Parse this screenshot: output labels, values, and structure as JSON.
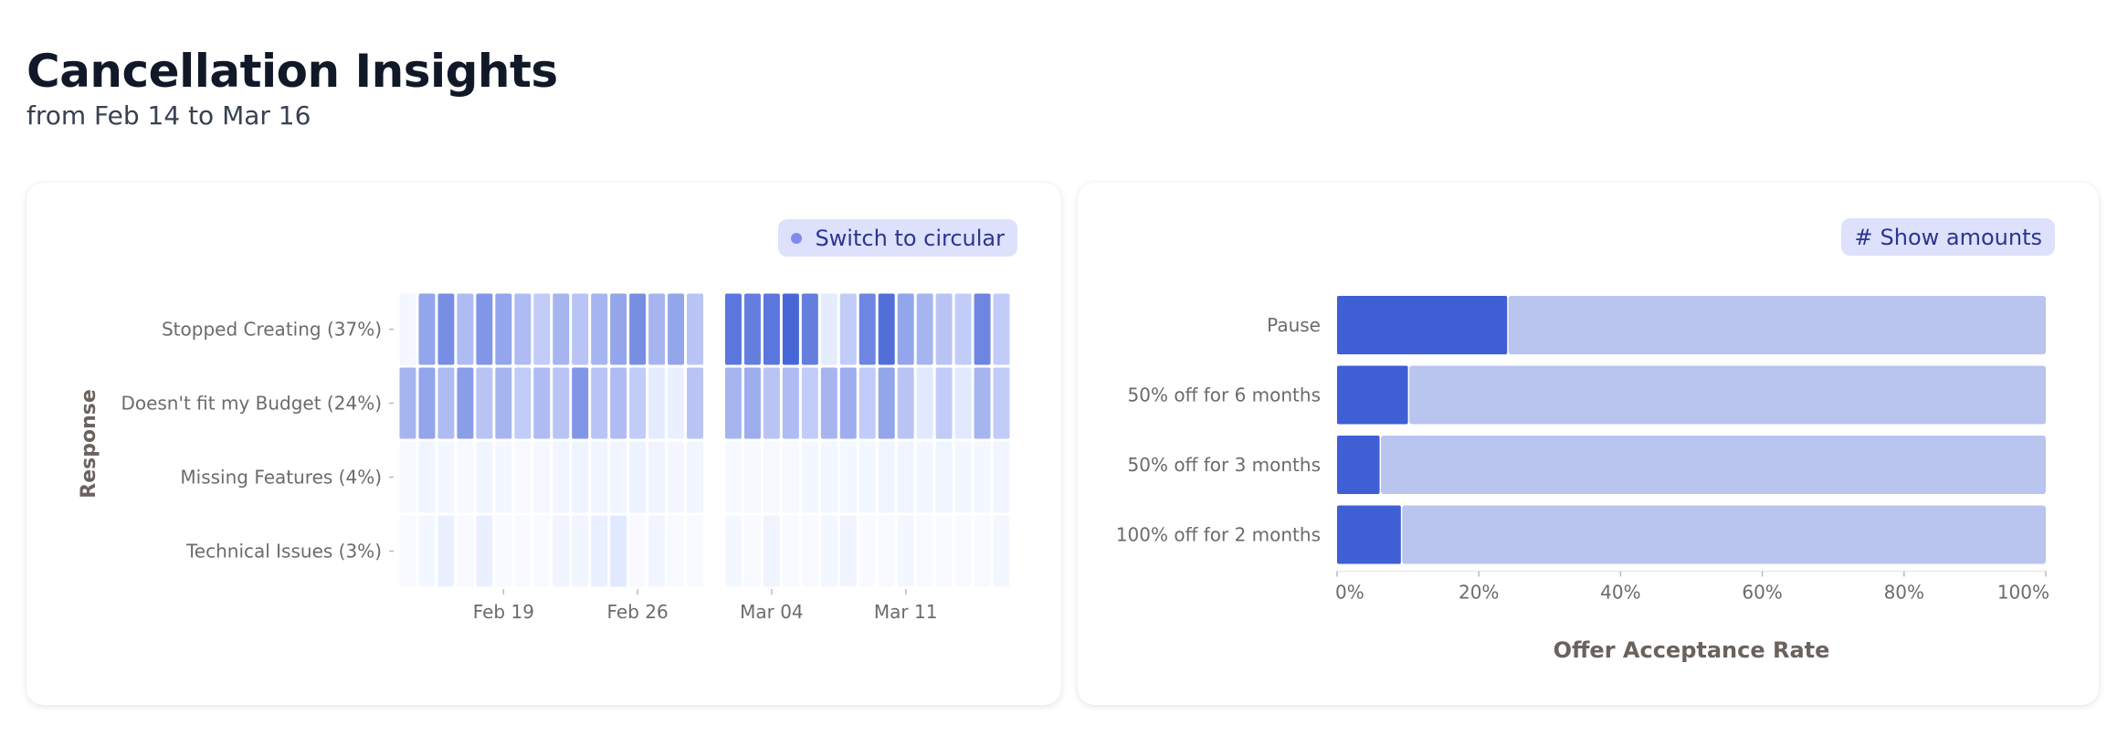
{
  "header": {
    "title": "Cancellation Insights",
    "subtitle": "from Feb 14 to Mar 16"
  },
  "left_panel": {
    "button_label": "Switch to circular",
    "button_icon": "dot-icon"
  },
  "right_panel": {
    "button_label": "Show amounts",
    "button_icon": "hash-icon"
  },
  "colors": {
    "accent": "#3f5fd4",
    "accent_light": "#b9c4ef",
    "button_bg": "#dde1fb",
    "button_text": "#2d3590"
  },
  "chart_data": [
    {
      "type": "heatmap",
      "ylabel": "Response",
      "xlabel": "",
      "categories": [
        "Stopped Creating (37%)",
        "Doesn't fit my Budget (24%)",
        "Missing Features (4%)",
        "Technical Issues (3%)"
      ],
      "x": [
        "Feb 14",
        "Feb 15",
        "Feb 16",
        "Feb 17",
        "Feb 18",
        "Feb 19",
        "Feb 20",
        "Feb 21",
        "Feb 22",
        "Feb 23",
        "Feb 24",
        "Feb 25",
        "Feb 26",
        "Feb 27",
        "Feb 28",
        "Feb 29",
        "Mar 01",
        "Mar 02",
        "Mar 03",
        "Mar 04",
        "Mar 05",
        "Mar 06",
        "Mar 07",
        "Mar 08",
        "Mar 09",
        "Mar 10",
        "Mar 11",
        "Mar 12",
        "Mar 13",
        "Mar 14",
        "Mar 15",
        "Mar 16"
      ],
      "x_ticks": [
        "Feb 19",
        "Feb 26",
        "Mar 04",
        "Mar 11"
      ],
      "values": [
        [
          0.05,
          0.55,
          0.7,
          0.4,
          0.65,
          0.55,
          0.4,
          0.3,
          0.45,
          0.35,
          0.45,
          0.55,
          0.7,
          0.45,
          0.55,
          0.35,
          0.0,
          0.85,
          0.8,
          0.85,
          0.95,
          0.8,
          0.2,
          0.3,
          0.75,
          0.9,
          0.55,
          0.45,
          0.35,
          0.3,
          0.75,
          0.3
        ],
        [
          0.45,
          0.55,
          0.4,
          0.6,
          0.35,
          0.45,
          0.3,
          0.4,
          0.35,
          0.65,
          0.35,
          0.4,
          0.3,
          0.2,
          0.15,
          0.35,
          0.0,
          0.45,
          0.5,
          0.35,
          0.4,
          0.3,
          0.45,
          0.5,
          0.3,
          0.55,
          0.35,
          0.25,
          0.3,
          0.25,
          0.45,
          0.3
        ],
        [
          0.03,
          0.08,
          0.06,
          0.03,
          0.08,
          0.06,
          0.02,
          0.04,
          0.08,
          0.1,
          0.08,
          0.08,
          0.12,
          0.1,
          0.05,
          0.08,
          0.0,
          0.03,
          0.03,
          0.03,
          0.03,
          0.06,
          0.06,
          0.06,
          0.06,
          0.08,
          0.08,
          0.06,
          0.08,
          0.06,
          0.06,
          0.08
        ],
        [
          0.01,
          0.06,
          0.15,
          0.01,
          0.15,
          0.02,
          0.02,
          0.02,
          0.1,
          0.08,
          0.15,
          0.25,
          0.01,
          0.08,
          0.02,
          0.02,
          0.0,
          0.06,
          0.02,
          0.1,
          0.02,
          0.01,
          0.06,
          0.1,
          0.01,
          0.01,
          0.06,
          0.02,
          0.01,
          0.02,
          0.02,
          0.06
        ]
      ]
    },
    {
      "type": "bar",
      "orientation": "horizontal",
      "stacked": true,
      "xlabel": "Offer Acceptance Rate",
      "ylabel": "",
      "categories": [
        "Pause",
        "50% off for 6 months",
        "50% off for 3 months",
        "100% off for 2 months"
      ],
      "series": [
        {
          "values": [
            24,
            10,
            6,
            9
          ]
        },
        {
          "values": [
            76,
            90,
            94,
            91
          ]
        }
      ],
      "xlim": [
        0,
        100
      ],
      "x_ticks": [
        "0%",
        "20%",
        "40%",
        "60%",
        "80%",
        "100%"
      ]
    }
  ]
}
